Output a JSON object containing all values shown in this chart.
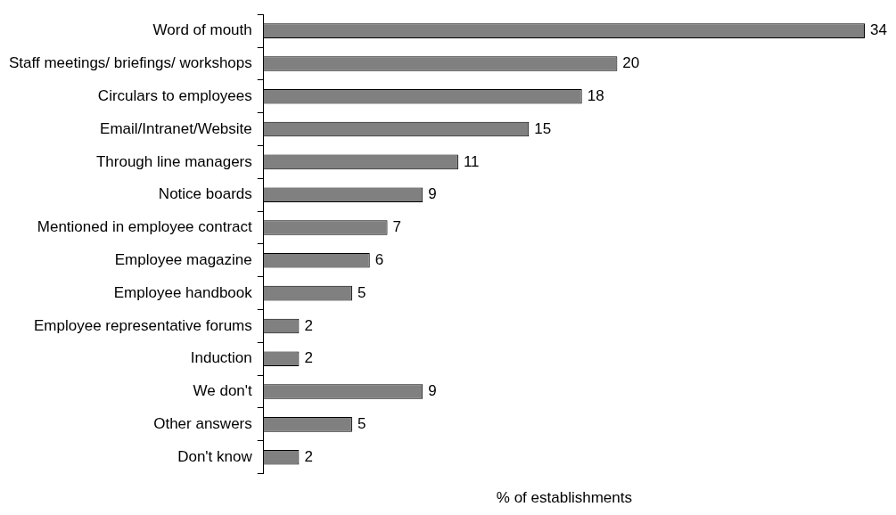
{
  "chart_data": {
    "type": "bar",
    "orientation": "horizontal",
    "xlabel": "% of establishments",
    "categories": [
      "Word of mouth",
      "Staff meetings/ briefings/ workshops",
      "Circulars to employees",
      "Email/Intranet/Website",
      "Through line managers",
      "Notice boards",
      "Mentioned in employee contract",
      "Employee magazine",
      "Employee handbook",
      "Employee representative forums",
      "Induction",
      "We don't",
      "Other answers",
      "Don't know"
    ],
    "values": [
      34,
      20,
      18,
      15,
      11,
      9,
      7,
      6,
      5,
      2,
      2,
      9,
      5,
      2
    ],
    "color": "#808080",
    "data_labels": true,
    "grid": false,
    "legend": false,
    "tick_labels": "y"
  }
}
